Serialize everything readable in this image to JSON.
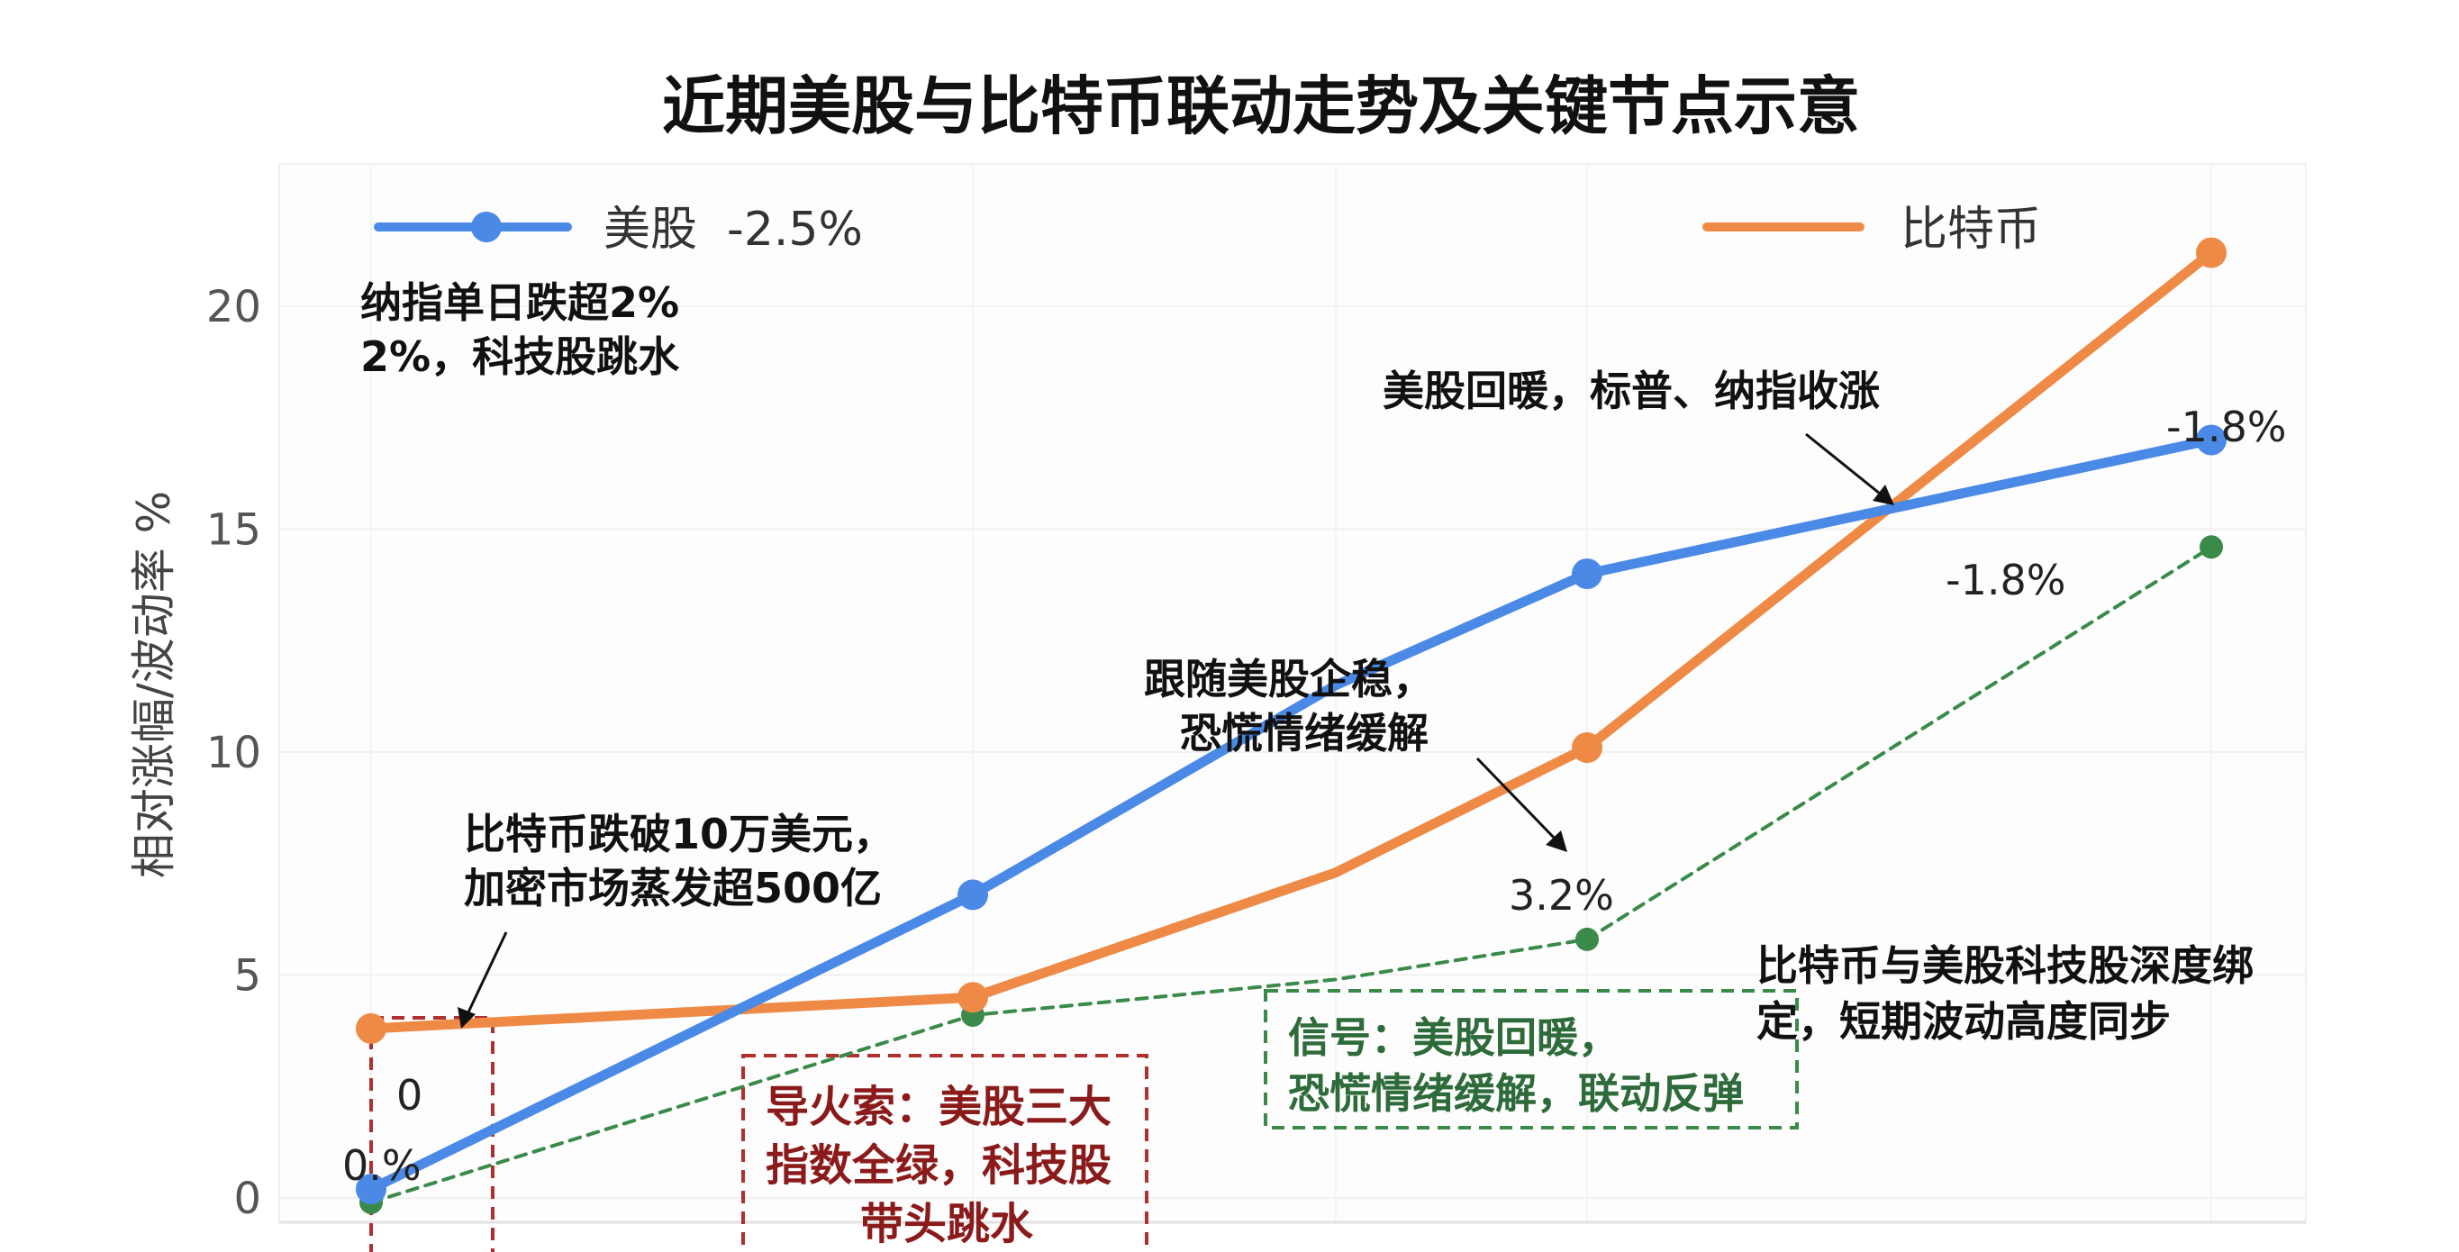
{
  "chart_data": {
    "type": "line",
    "title": "近期美股与比特币联动走势及关键节点示意",
    "ylabel": "相对涨幅/波动率 %",
    "xlabel": "",
    "ylim": [
      0,
      22
    ],
    "yticks": [
      0,
      5,
      10,
      15,
      20
    ],
    "x": [
      0,
      1,
      2,
      3,
      4
    ],
    "grid": true,
    "legend_position": "top",
    "series": [
      {
        "name": "美股 -2.5%",
        "color": "#4a8ae6",
        "style": "solid",
        "marker": true,
        "values": [
          0.2,
          6.8,
          11.5,
          14.0,
          17.0
        ]
      },
      {
        "name": "比特币",
        "color": "#ee8a45",
        "style": "solid",
        "marker": true,
        "values": [
          3.8,
          4.5,
          7.3,
          10.1,
          21.2
        ]
      },
      {
        "color": "#3a8a4a",
        "style": "dashed",
        "marker": true,
        "values": [
          -0.1,
          4.1,
          4.9,
          5.8,
          14.6
        ]
      }
    ],
    "legend": [
      {
        "label": "美股  -2.5%",
        "series": 0
      },
      {
        "label": "比特币",
        "series": 1
      }
    ],
    "annotations": {
      "nasdaq_drop": [
        "纳指单日跌超2%",
        "2%，科技股跳水"
      ],
      "btc_break": [
        "比特币跌破10万美元，",
        "加密市场蒸发超500亿"
      ],
      "follow_stable": [
        "跟随美股企稳，",
        "恐慌情绪缓解"
      ],
      "us_recover": "美股回暖，标普、纳指收涨",
      "bind": [
        "比特币与美股科技股深度绑",
        "定，短期波动高度同步"
      ],
      "trigger": [
        "导火索：美股三大",
        "指数全绿，科技股",
        "带头跳水"
      ],
      "signal": [
        "信号：美股回暖，",
        "恐慌情绪缓解，联动反弹"
      ],
      "label_zero": "0",
      "label_zero_pct": "0.%",
      "label_32": "3.2%",
      "label_m18_a": "-1.8%",
      "label_m18_b": "-1.8%"
    }
  }
}
